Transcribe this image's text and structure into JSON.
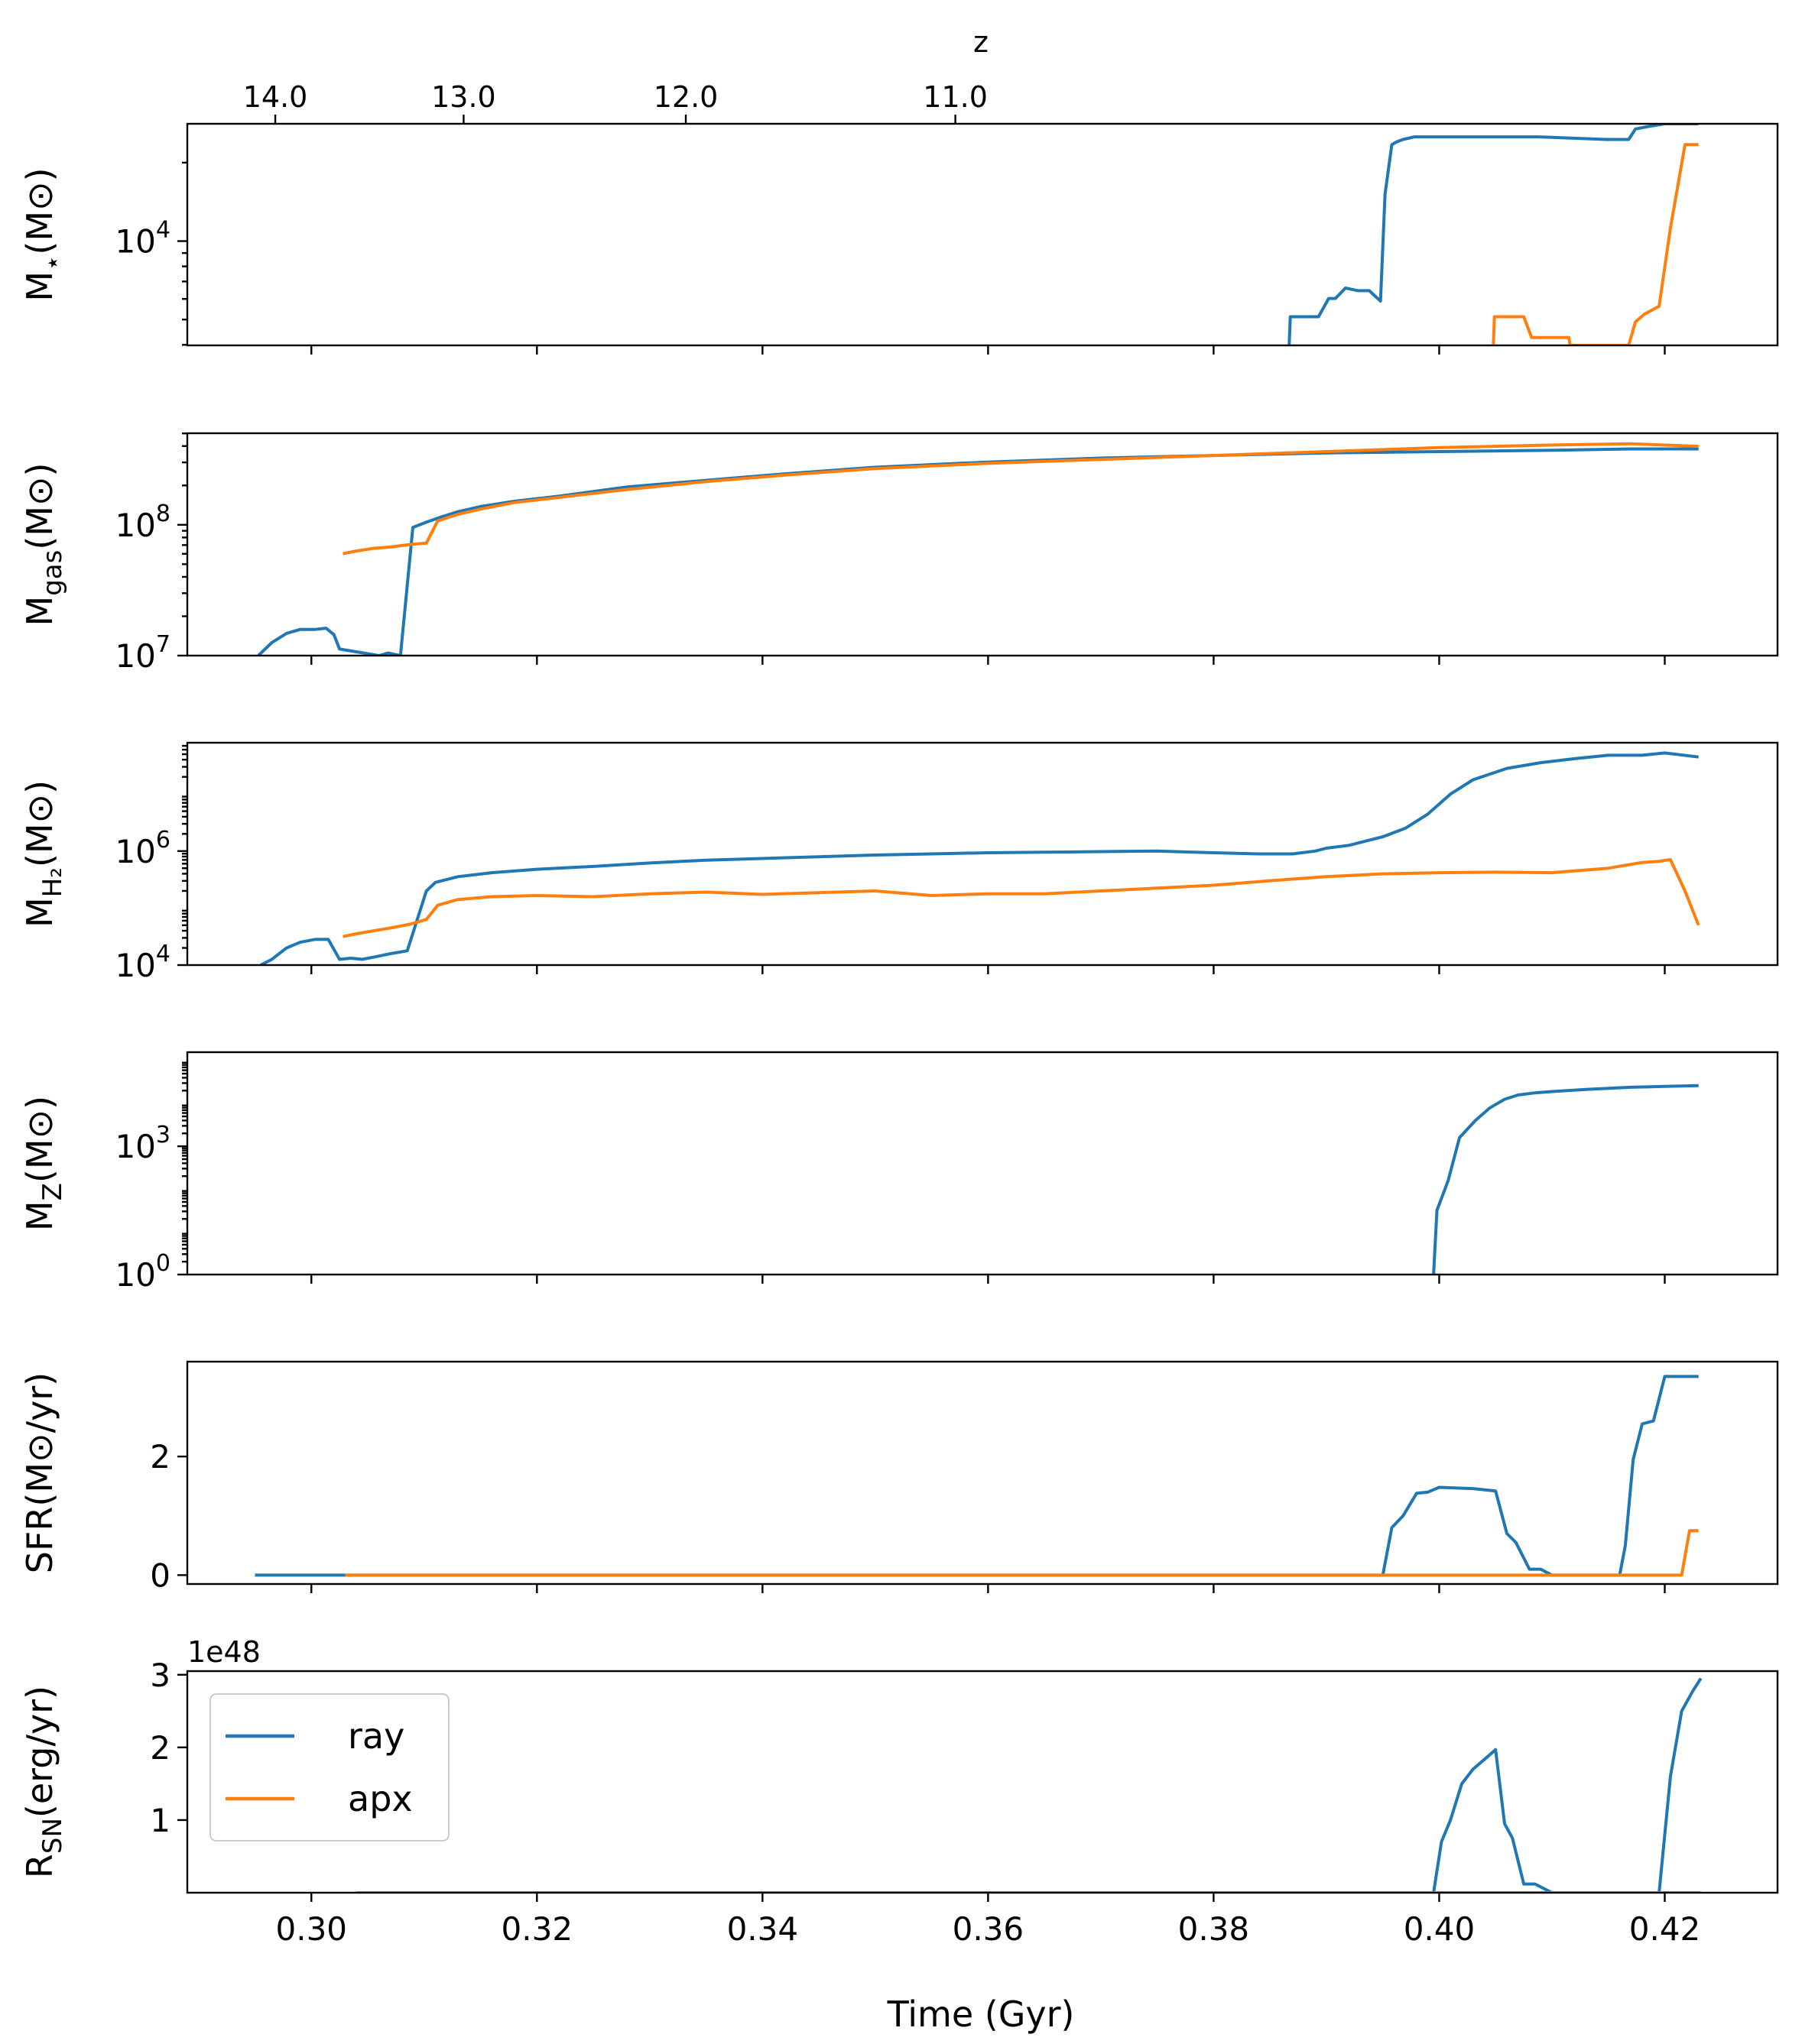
{
  "colors": {
    "ray": "#1f77b4",
    "apx": "#ff7f0e"
  },
  "top_axis": {
    "label": "z",
    "ticks": [
      "14.0",
      "13.0",
      "12.0",
      "11.0"
    ],
    "tick_times": [
      0.2968,
      0.3135,
      0.3332,
      0.3571
    ]
  },
  "x_axis": {
    "label": "Time (Gyr)",
    "range": [
      0.289,
      0.43
    ],
    "ticks": [
      0.3,
      0.32,
      0.34,
      0.36,
      0.38,
      0.4,
      0.42
    ],
    "tick_labels": [
      "0.30",
      "0.32",
      "0.34",
      "0.36",
      "0.38",
      "0.40",
      "0.42"
    ]
  },
  "legend": {
    "entries": [
      "ray",
      "apx"
    ],
    "placement": "upper-left of last panel"
  },
  "panels": [
    {
      "id": "mstar",
      "ylabel_main": "M",
      "ylabel_sub": "⋆",
      "ylabel_tail": "(M⊙)",
      "scale": "log",
      "ylim": [
        3.6,
        4.45
      ],
      "ticks": [
        {
          "value": 4,
          "base": "10",
          "exp": "4"
        }
      ],
      "series": [
        {
          "key": "ray",
          "x": [
            0.3867,
            0.3868,
            0.3892,
            0.3893,
            0.3902,
            0.3908,
            0.3917,
            0.3928,
            0.3938,
            0.3948,
            0.3952,
            0.3958,
            0.3962,
            0.3968,
            0.3978,
            0.3988,
            0.4028,
            0.4088,
            0.4148,
            0.4168,
            0.4174,
            0.4186,
            0.42,
            0.423
          ],
          "y": [
            3.6,
            3.71,
            3.71,
            3.71,
            3.78,
            3.78,
            3.82,
            3.81,
            3.81,
            3.77,
            4.18,
            4.37,
            4.38,
            4.39,
            4.4,
            4.4,
            4.4,
            4.4,
            4.39,
            4.39,
            4.43,
            4.44,
            4.45,
            4.45
          ]
        },
        {
          "key": "apx",
          "x": [
            0.4048,
            0.4049,
            0.4075,
            0.4082,
            0.4115,
            0.4116,
            0.4168,
            0.4174,
            0.4182,
            0.4195,
            0.4205,
            0.4218,
            0.423
          ],
          "y": [
            3.6,
            3.71,
            3.71,
            3.63,
            3.63,
            3.6,
            3.6,
            3.69,
            3.72,
            3.75,
            4.05,
            4.37,
            4.37
          ]
        }
      ]
    },
    {
      "id": "mgas",
      "ylabel_main": "M",
      "ylabel_sub": "gas",
      "ylabel_tail": "(M⊙)",
      "scale": "log",
      "ylim": [
        7,
        8.7
      ],
      "ticks": [
        {
          "value": 7,
          "base": "10",
          "exp": "7"
        },
        {
          "value": 8,
          "base": "10",
          "exp": "8"
        }
      ],
      "series": [
        {
          "key": "ray",
          "x": [
            0.2953,
            0.2965,
            0.2978,
            0.299,
            0.3003,
            0.3013,
            0.302,
            0.3025,
            0.306,
            0.3068,
            0.3079,
            0.309,
            0.3102,
            0.3115,
            0.313,
            0.315,
            0.318,
            0.322,
            0.328,
            0.335,
            0.342,
            0.35,
            0.36,
            0.37,
            0.38,
            0.39,
            0.4,
            0.41,
            0.417,
            0.423
          ],
          "y": [
            7.0,
            7.1,
            7.17,
            7.2,
            7.2,
            7.21,
            7.16,
            7.05,
            7.0,
            7.02,
            7.0,
            7.98,
            8.02,
            8.06,
            8.1,
            8.14,
            8.18,
            8.22,
            8.29,
            8.34,
            8.39,
            8.44,
            8.48,
            8.51,
            8.53,
            8.55,
            8.56,
            8.57,
            8.58,
            8.58
          ]
        },
        {
          "key": "apx",
          "x": [
            0.3028,
            0.304,
            0.3055,
            0.307,
            0.3088,
            0.3102,
            0.3112,
            0.313,
            0.315,
            0.318,
            0.322,
            0.328,
            0.335,
            0.342,
            0.35,
            0.36,
            0.37,
            0.38,
            0.39,
            0.4,
            0.41,
            0.417,
            0.423
          ],
          "y": [
            7.78,
            7.8,
            7.82,
            7.83,
            7.85,
            7.86,
            8.03,
            8.08,
            8.12,
            8.17,
            8.21,
            8.27,
            8.33,
            8.38,
            8.43,
            8.47,
            8.5,
            8.53,
            8.56,
            8.59,
            8.61,
            8.62,
            8.6
          ]
        }
      ]
    },
    {
      "id": "mh2",
      "ylabel_main": "M",
      "ylabel_sub": "H₂",
      "ylabel_tail": "(M⊙)",
      "scale": "log",
      "ylim": [
        4,
        7.9
      ],
      "ticks": [
        {
          "value": 4,
          "base": "10",
          "exp": "4"
        },
        {
          "value": 6,
          "base": "10",
          "exp": "6"
        }
      ],
      "series": [
        {
          "key": "ray",
          "x": [
            0.2955,
            0.2965,
            0.2978,
            0.299,
            0.3003,
            0.3015,
            0.3025,
            0.3035,
            0.3045,
            0.3058,
            0.307,
            0.3085,
            0.3102,
            0.311,
            0.313,
            0.316,
            0.32,
            0.325,
            0.33,
            0.335,
            0.34,
            0.345,
            0.35,
            0.355,
            0.36,
            0.365,
            0.37,
            0.375,
            0.38,
            0.384,
            0.387,
            0.389,
            0.39,
            0.392,
            0.395,
            0.397,
            0.399,
            0.401,
            0.403,
            0.406,
            0.409,
            0.412,
            0.415,
            0.418,
            0.42,
            0.423
          ],
          "y": [
            4.0,
            4.1,
            4.3,
            4.4,
            4.45,
            4.45,
            4.1,
            4.12,
            4.1,
            4.15,
            4.2,
            4.25,
            5.3,
            5.45,
            5.55,
            5.62,
            5.68,
            5.73,
            5.79,
            5.84,
            5.87,
            5.9,
            5.93,
            5.95,
            5.97,
            5.98,
            5.99,
            6.0,
            5.97,
            5.95,
            5.95,
            6.0,
            6.05,
            6.1,
            6.25,
            6.4,
            6.65,
            7.0,
            7.25,
            7.45,
            7.55,
            7.62,
            7.68,
            7.68,
            7.72,
            7.65
          ]
        },
        {
          "key": "apx",
          "x": [
            0.3028,
            0.304,
            0.3055,
            0.307,
            0.3088,
            0.3102,
            0.3112,
            0.313,
            0.316,
            0.32,
            0.325,
            0.33,
            0.335,
            0.34,
            0.345,
            0.35,
            0.355,
            0.36,
            0.365,
            0.37,
            0.375,
            0.38,
            0.385,
            0.39,
            0.395,
            0.4,
            0.405,
            0.41,
            0.415,
            0.418,
            0.4195,
            0.4205,
            0.4218,
            0.423
          ],
          "y": [
            4.5,
            4.55,
            4.6,
            4.65,
            4.72,
            4.8,
            5.05,
            5.15,
            5.2,
            5.22,
            5.2,
            5.25,
            5.28,
            5.24,
            5.27,
            5.3,
            5.22,
            5.25,
            5.25,
            5.3,
            5.35,
            5.4,
            5.48,
            5.55,
            5.6,
            5.62,
            5.63,
            5.62,
            5.7,
            5.8,
            5.82,
            5.85,
            5.3,
            4.7
          ]
        }
      ]
    },
    {
      "id": "mz",
      "ylabel_main": "M",
      "ylabel_sub": "Z",
      "ylabel_tail": "(M⊙)",
      "scale": "log",
      "ylim": [
        0,
        5.2
      ],
      "ticks": [
        {
          "value": 0,
          "base": "10",
          "exp": "0"
        },
        {
          "value": 3,
          "base": "10",
          "exp": "3"
        }
      ],
      "series": [
        {
          "key": "ray",
          "x": [
            0.3995,
            0.3998,
            0.4008,
            0.4018,
            0.4032,
            0.4045,
            0.4058,
            0.407,
            0.4085,
            0.41,
            0.413,
            0.417,
            0.42,
            0.423
          ],
          "y": [
            0.0,
            1.5,
            2.2,
            3.2,
            3.6,
            3.9,
            4.1,
            4.2,
            4.25,
            4.28,
            4.33,
            4.38,
            4.4,
            4.42
          ]
        }
      ]
    },
    {
      "id": "sfr",
      "ylabel_main": "SFR",
      "ylabel_sub": "",
      "ylabel_tail": "(M⊙/yr)",
      "scale": "linear",
      "ylim": [
        -0.15,
        3.6
      ],
      "ticks": [
        {
          "value": 0,
          "label": "0"
        },
        {
          "value": 2,
          "label": "2"
        }
      ],
      "series": [
        {
          "key": "ray",
          "x": [
            0.295,
            0.395,
            0.3958,
            0.3968,
            0.398,
            0.399,
            0.4,
            0.403,
            0.405,
            0.406,
            0.4068,
            0.408,
            0.409,
            0.41,
            0.416,
            0.4165,
            0.4172,
            0.418,
            0.419,
            0.42,
            0.423
          ],
          "y": [
            0,
            0,
            0.8,
            1.0,
            1.38,
            1.4,
            1.48,
            1.46,
            1.42,
            0.7,
            0.55,
            0.1,
            0.1,
            0.0,
            0.0,
            0.5,
            1.95,
            2.55,
            2.6,
            3.35,
            3.35
          ]
        },
        {
          "key": "apx",
          "x": [
            0.303,
            0.4215,
            0.4222,
            0.423
          ],
          "y": [
            0,
            0,
            0.75,
            0.75
          ]
        }
      ]
    },
    {
      "id": "rsn",
      "ylabel_main": "R",
      "ylabel_sub": "SN",
      "ylabel_tail": "(erg/yr)",
      "scale": "linear",
      "ylim": [
        0,
        3.05
      ],
      "offset_text": "1e48",
      "ticks": [
        {
          "value": 1,
          "label": "1"
        },
        {
          "value": 2,
          "label": "2"
        },
        {
          "value": 3,
          "label": "3"
        }
      ],
      "series": [
        {
          "key": "ray",
          "x": [
            0.3995,
            0.4002,
            0.401,
            0.402,
            0.403,
            0.4045,
            0.405,
            0.4058,
            0.4065,
            0.4075,
            0.4085,
            0.41,
            0.4195,
            0.4205,
            0.4215,
            0.4225,
            0.4232
          ],
          "y": [
            0.0,
            0.7,
            1.0,
            1.5,
            1.7,
            1.9,
            1.97,
            0.95,
            0.75,
            0.12,
            0.12,
            0.0,
            0.0,
            1.6,
            2.5,
            2.78,
            2.95
          ]
        },
        {
          "key": "apx",
          "x": [
            0.304,
            0.4232
          ],
          "y": [
            0.0,
            0.0
          ]
        }
      ]
    }
  ]
}
